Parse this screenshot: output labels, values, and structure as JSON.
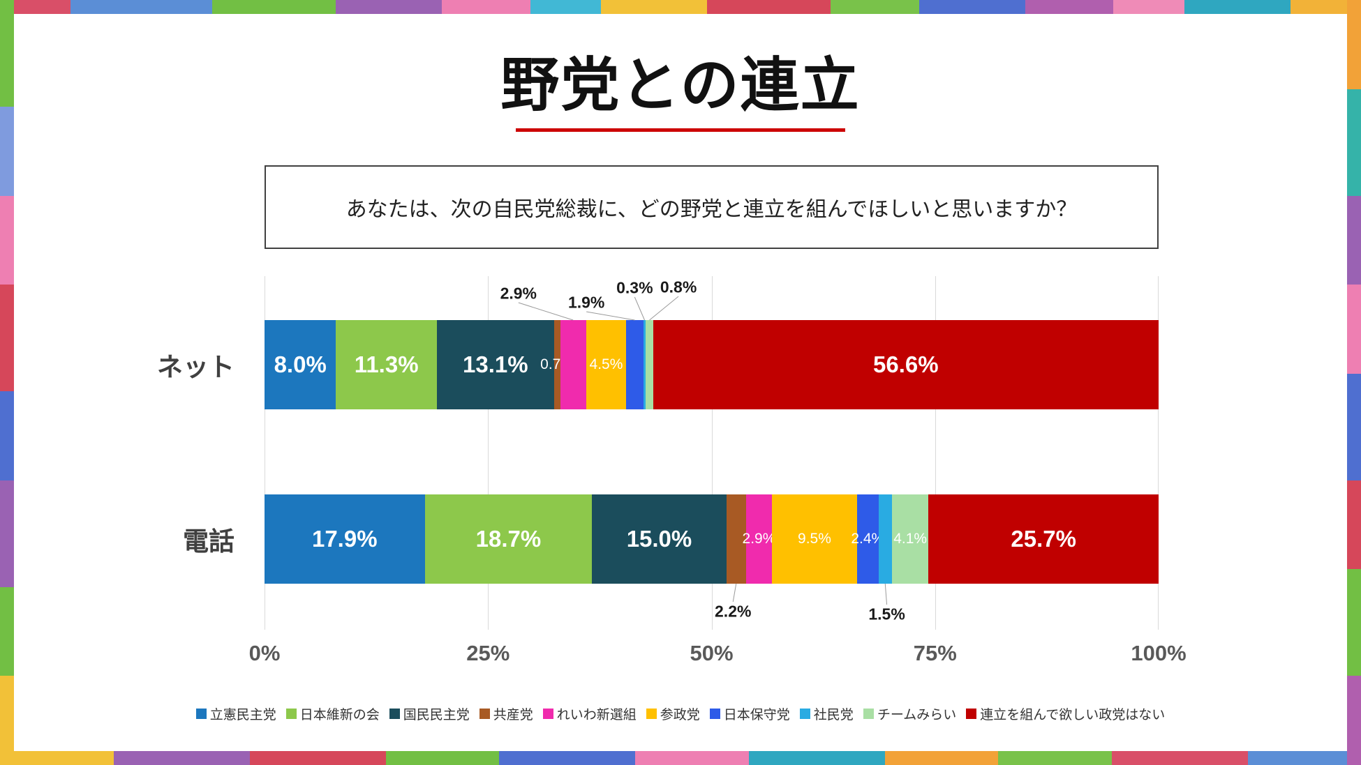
{
  "title": {
    "text": "野党との連立",
    "underline_color": "#cc0000"
  },
  "question": {
    "text": "あなたは、次の自民党総裁に、どの野党と連立を組んでほしいと思いますか？"
  },
  "chart_data": {
    "type": "bar",
    "subtype": "horizontal-stacked",
    "title": "野党との連立",
    "unit": "%",
    "xlim": [
      0,
      100
    ],
    "grid": true,
    "legend_position": "bottom",
    "x_ticks": [
      "0%",
      "25%",
      "50%",
      "75%",
      "100%"
    ],
    "categories": [
      "ネット",
      "電話"
    ],
    "parties": [
      {
        "name": "立憲民主党",
        "color": "#1c77be"
      },
      {
        "name": "日本維新の会",
        "color": "#8dc84b"
      },
      {
        "name": "国民民主党",
        "color": "#1b4d5c"
      },
      {
        "name": "共産党",
        "color": "#a85a24"
      },
      {
        "name": "れいわ新選組",
        "color": "#f02bad"
      },
      {
        "name": "参政党",
        "color": "#ffc000"
      },
      {
        "name": "日本保守党",
        "color": "#2e5be8"
      },
      {
        "name": "社民党",
        "color": "#29abe2"
      },
      {
        "name": "チームみらい",
        "color": "#a9dfa4"
      },
      {
        "name": "連立を組んで欲しい政党はない",
        "color": "#c00000"
      }
    ],
    "rows": [
      {
        "category": "ネット",
        "values": [
          8.0,
          11.3,
          13.1,
          0.7,
          2.9,
          4.5,
          1.9,
          0.3,
          0.8,
          56.6
        ],
        "labels": [
          "8.0%",
          "11.3%",
          "13.1%",
          "0.7%",
          "2.9%",
          "4.5%",
          "1.9%",
          "0.3%",
          "0.8%",
          "56.6%"
        ],
        "label_placement": [
          "inside-lg",
          "inside-lg",
          "inside-lg",
          "inside-sm",
          "above",
          "inside-sm",
          "above",
          "above",
          "above",
          "inside-lg"
        ],
        "callouts": [
          {
            "segment": 4,
            "x_pct": 28.4,
            "y": 25
          },
          {
            "segment": 6,
            "x_pct": 36.0,
            "y": 38
          },
          {
            "segment": 7,
            "x_pct": 41.4,
            "y": 17
          },
          {
            "segment": 8,
            "x_pct": 46.3,
            "y": 16
          }
        ]
      },
      {
        "category": "電話",
        "values": [
          17.9,
          18.7,
          15.0,
          2.2,
          2.9,
          9.5,
          2.4,
          1.5,
          4.1,
          25.7
        ],
        "labels": [
          "17.9%",
          "18.7%",
          "15.0%",
          "2.2%",
          "2.9%",
          "9.5%",
          "2.4%",
          "1.5%",
          "4.1%",
          "25.7%"
        ],
        "label_placement": [
          "inside-lg",
          "inside-lg",
          "inside-lg",
          "below",
          "inside-sm",
          "inside-sm",
          "inside-sm",
          "below",
          "inside-sm",
          "inside-lg"
        ],
        "callouts": [
          {
            "segment": 3,
            "x_pct": 52.4,
            "y": 481
          },
          {
            "segment": 7,
            "x_pct": 69.6,
            "y": 485
          }
        ]
      }
    ]
  },
  "frame": {
    "top": [
      {
        "color": "#d94f68",
        "size": 4
      },
      {
        "color": "#5b8ed6",
        "size": 8
      },
      {
        "color": "#72bf44",
        "size": 7
      },
      {
        "color": "#9a62b3",
        "size": 6
      },
      {
        "color": "#ee7fb2",
        "size": 5
      },
      {
        "color": "#41b8d5",
        "size": 4
      },
      {
        "color": "#f2c138",
        "size": 6
      },
      {
        "color": "#d6475a",
        "size": 7
      },
      {
        "color": "#79c24a",
        "size": 5
      },
      {
        "color": "#4f6fd0",
        "size": 6
      },
      {
        "color": "#b05fae",
        "size": 5
      },
      {
        "color": "#ef8bb7",
        "size": 4
      },
      {
        "color": "#2fa7c0",
        "size": 6
      },
      {
        "color": "#f2b238",
        "size": 4
      }
    ],
    "left": [
      {
        "color": "#72bf44",
        "size": 6
      },
      {
        "color": "#7f9bde",
        "size": 5
      },
      {
        "color": "#ee7fb2",
        "size": 5
      },
      {
        "color": "#d6475a",
        "size": 6
      },
      {
        "color": "#4f6fd0",
        "size": 5
      },
      {
        "color": "#9a62b3",
        "size": 6
      },
      {
        "color": "#72bf44",
        "size": 5
      },
      {
        "color": "#f2c138",
        "size": 5
      }
    ],
    "right": [
      {
        "color": "#f2a238",
        "size": 5
      },
      {
        "color": "#35b3a9",
        "size": 6
      },
      {
        "color": "#9a62b3",
        "size": 5
      },
      {
        "color": "#ee7fb2",
        "size": 5
      },
      {
        "color": "#4f6fd0",
        "size": 6
      },
      {
        "color": "#d6475a",
        "size": 5
      },
      {
        "color": "#72bf44",
        "size": 6
      },
      {
        "color": "#b05fae",
        "size": 5
      }
    ],
    "bottom": [
      {
        "color": "#f2c138",
        "size": 5
      },
      {
        "color": "#9a62b3",
        "size": 6
      },
      {
        "color": "#d6475a",
        "size": 6
      },
      {
        "color": "#72bf44",
        "size": 5
      },
      {
        "color": "#4f6fd0",
        "size": 6
      },
      {
        "color": "#ee7fb2",
        "size": 5
      },
      {
        "color": "#2fa7c0",
        "size": 6
      },
      {
        "color": "#f2a238",
        "size": 5
      },
      {
        "color": "#79c24a",
        "size": 5
      },
      {
        "color": "#d94f68",
        "size": 6
      },
      {
        "color": "#5b8ed6",
        "size": 5
      }
    ]
  }
}
